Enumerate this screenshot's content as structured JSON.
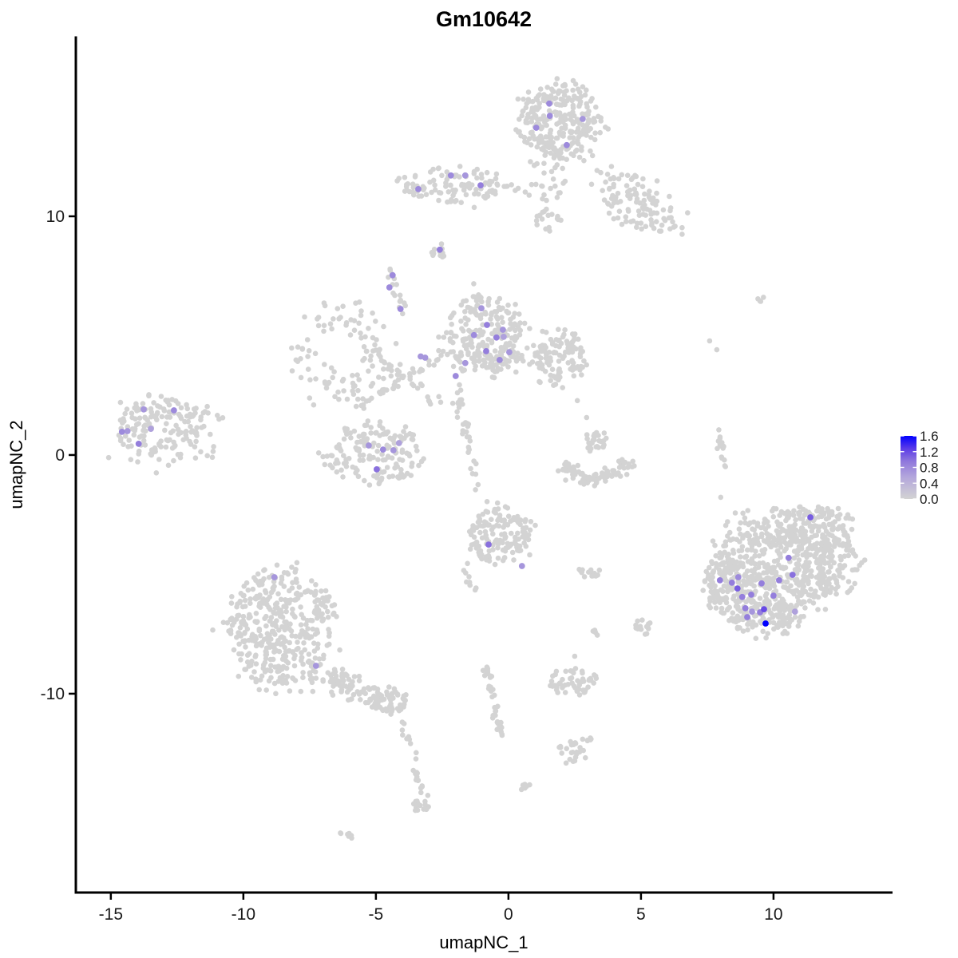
{
  "title": "Gm10642",
  "legend": {
    "labels": [
      "1.6",
      "1.2",
      "0.8",
      "0.4",
      "0.0"
    ],
    "values": [
      1.6,
      1.2,
      0.8,
      0.4,
      0.0
    ],
    "low_color": "#D3D3D3",
    "high_color": "#0000FF",
    "position": "right"
  },
  "chart_data": {
    "type": "scatter",
    "title": "Gm10642",
    "xlabel": "umapNC_1",
    "ylabel": "umapNC_2",
    "xlim": [
      -16.32,
      14.49
    ],
    "ylim": [
      -18.33,
      17.49
    ],
    "x_ticks": [
      -15,
      -10,
      -5,
      0,
      5,
      10
    ],
    "x_tick_labels": [
      "-15",
      "-10",
      "-5",
      "0",
      "5",
      "10"
    ],
    "y_ticks": [
      10,
      0,
      -10
    ],
    "y_tick_labels": [
      "10",
      "0",
      "-10"
    ],
    "grid": false,
    "legend_position": "right",
    "expression_max": 1.6,
    "gradient_stops": [
      [
        0,
        "#D3D3D3"
      ],
      [
        0.35,
        "#B3A6DC"
      ],
      [
        0.6,
        "#8F77DC"
      ],
      [
        0.8,
        "#5B3BE8"
      ],
      [
        1,
        "#0000FF"
      ]
    ],
    "background_clusters": [
      {
        "cx": 1.9,
        "cy": 14.0,
        "rx": 1.5,
        "ry": 1.55,
        "n": 270
      },
      {
        "cx": 1.45,
        "cy": 11.2,
        "rx": 0.85,
        "ry": 1.7,
        "n": 48
      },
      {
        "cx": 4.8,
        "cy": 10.6,
        "rx": 1.9,
        "ry": 0.95,
        "n": 115,
        "rot": -32
      },
      {
        "cx": -1.9,
        "cy": 11.3,
        "rx": 2.0,
        "ry": 0.8,
        "n": 95
      },
      {
        "cx": -3.55,
        "cy": 11.15,
        "rx": 0.4,
        "ry": 0.3,
        "n": 9
      },
      {
        "cx": -2.6,
        "cy": 8.6,
        "rx": 0.3,
        "ry": 0.35,
        "n": 12
      },
      {
        "cx": -4.4,
        "cy": 7.4,
        "rx": 0.22,
        "ry": 0.38,
        "n": 8
      },
      {
        "cx": -0.85,
        "cy": 5.0,
        "rx": 1.5,
        "ry": 1.65,
        "n": 240
      },
      {
        "cx": 1.9,
        "cy": 4.0,
        "rx": 1.05,
        "ry": 1.2,
        "n": 115
      },
      {
        "cx": -6.3,
        "cy": 4.3,
        "rx": 1.7,
        "ry": 2.0,
        "n": 100,
        "hollow": 0.45
      },
      {
        "cx": -13.2,
        "cy": 1.1,
        "rx": 1.7,
        "ry": 1.5,
        "n": 160
      },
      {
        "cx": -11.4,
        "cy": 0.9,
        "rx": 0.8,
        "ry": 1.2,
        "n": 14
      },
      {
        "cx": -5.1,
        "cy": 0.1,
        "rx": 1.75,
        "ry": 1.3,
        "n": 160
      },
      {
        "cx": 3.3,
        "cy": 0.65,
        "rx": 0.42,
        "ry": 0.5,
        "n": 26
      },
      {
        "cx": -0.35,
        "cy": -3.4,
        "rx": 1.15,
        "ry": 1.15,
        "n": 140
      },
      {
        "cx": 10.2,
        "cy": -4.6,
        "rx": 2.2,
        "ry": 2.2,
        "n": 480
      },
      {
        "cx": 11.7,
        "cy": -3.1,
        "rx": 1.35,
        "ry": 0.95,
        "n": 140
      },
      {
        "cx": 12.3,
        "cy": -4.8,
        "rx": 1.0,
        "ry": 1.1,
        "n": 80
      },
      {
        "cx": 8.3,
        "cy": -5.6,
        "rx": 0.9,
        "ry": 1.45,
        "n": 130
      },
      {
        "cx": 9.8,
        "cy": -6.9,
        "rx": 1.3,
        "ry": 0.75,
        "n": 100
      },
      {
        "cx": -8.6,
        "cy": -7.3,
        "rx": 2.0,
        "ry": 2.45,
        "n": 420
      },
      {
        "cx": -4.4,
        "cy": -10.4,
        "rx": 0.55,
        "ry": 0.55,
        "n": 50
      },
      {
        "cx": 2.4,
        "cy": -9.5,
        "rx": 0.95,
        "ry": 0.5,
        "n": 55
      },
      {
        "cx": 2.4,
        "cy": -12.45,
        "rx": 0.45,
        "ry": 0.45,
        "n": 24
      },
      {
        "cx": 0.6,
        "cy": -13.8,
        "rx": 0.2,
        "ry": 0.2,
        "n": 6
      },
      {
        "cx": 2.98,
        "cy": -4.92,
        "rx": 0.6,
        "ry": 0.22,
        "n": 14
      },
      {
        "cx": 5.1,
        "cy": -7.2,
        "rx": 0.3,
        "ry": 0.45,
        "n": 16
      },
      {
        "cx": 3.3,
        "cy": -7.4,
        "rx": 0.18,
        "ry": 0.3,
        "n": 4
      },
      {
        "cx": -3.35,
        "cy": -14.75,
        "rx": 0.35,
        "ry": 0.3,
        "n": 14
      },
      {
        "cx": -6.1,
        "cy": -15.9,
        "rx": 0.33,
        "ry": 0.13,
        "n": 7,
        "rot": -25
      },
      {
        "cx": 9.46,
        "cy": 6.53,
        "rx": 0.22,
        "ry": 0.1,
        "n": 4
      }
    ],
    "background_strands": [
      {
        "from": [
          -0.4,
          11.35
        ],
        "to": [
          0.7,
          11.05
        ],
        "n": 6,
        "w": 0.18
      },
      {
        "from": [
          -4.3,
          6.9
        ],
        "to": [
          -3.4,
          4.9
        ],
        "n": 9,
        "w": 0.18
      },
      {
        "from": [
          -1.25,
          7.3
        ],
        "to": [
          -1.0,
          6.4
        ],
        "n": 5,
        "w": 0.15
      },
      {
        "from": [
          -5.6,
          2.0
        ],
        "to": [
          -2.4,
          4.3
        ],
        "n": 36,
        "w": 0.22
      },
      {
        "from": [
          -5.0,
          4.2
        ],
        "to": [
          -2.6,
          2.1
        ],
        "n": 30,
        "w": 0.22
      },
      {
        "from": [
          -2.0,
          3.0
        ],
        "to": [
          -1.45,
          0.3
        ],
        "n": 26,
        "w": 0.18
      },
      {
        "from": [
          -1.4,
          0.0
        ],
        "to": [
          -1.15,
          -1.6
        ],
        "n": 7,
        "w": 0.15
      },
      {
        "from": [
          2.0,
          -0.5
        ],
        "to": [
          3.2,
          -1.15
        ],
        "n": 45,
        "w": 0.3
      },
      {
        "from": [
          3.2,
          -1.15
        ],
        "to": [
          4.6,
          -0.35
        ],
        "n": 45,
        "w": 0.3
      },
      {
        "from": [
          7.9,
          1.1
        ],
        "to": [
          8.15,
          -0.6
        ],
        "n": 16,
        "w": 0.12
      },
      {
        "from": [
          -6.9,
          -9.2
        ],
        "to": [
          -5.0,
          -10.2
        ],
        "n": 80,
        "w": 0.45
      },
      {
        "from": [
          -4.05,
          -11.05
        ],
        "to": [
          -3.45,
          -12.75
        ],
        "n": 10,
        "w": 0.1
      },
      {
        "from": [
          -3.55,
          -13.2
        ],
        "to": [
          -3.15,
          -14.3
        ],
        "n": 13,
        "w": 0.12
      },
      {
        "from": [
          -0.85,
          -8.9
        ],
        "to": [
          -0.55,
          -10.4
        ],
        "n": 20,
        "w": 0.18
      },
      {
        "from": [
          -0.55,
          -10.4
        ],
        "to": [
          -0.22,
          -11.9
        ],
        "n": 18,
        "w": 0.18
      },
      {
        "from": [
          -1.75,
          -4.6
        ],
        "to": [
          -1.3,
          -5.7
        ],
        "n": 9,
        "w": 0.15
      },
      {
        "from": [
          2.75,
          -12.15
        ],
        "to": [
          3.3,
          -11.65
        ],
        "n": 6,
        "w": 0.12
      }
    ],
    "background_singles": [
      [
        8.01,
        -1.77
      ],
      [
        2.5,
        -8.43
      ],
      [
        7.59,
        4.78
      ],
      [
        7.86,
        4.41
      ],
      [
        2.6,
        2.28
      ],
      [
        2.95,
        1.57
      ]
    ],
    "expressing_cells": [
      [
        1.54,
        14.72,
        0.8
      ],
      [
        1.56,
        14.21,
        0.8
      ],
      [
        1.05,
        13.71,
        0.8
      ],
      [
        2.8,
        14.08,
        0.7
      ],
      [
        2.2,
        12.98,
        0.8
      ],
      [
        -2.17,
        11.71,
        0.8
      ],
      [
        -1.63,
        11.71,
        0.7
      ],
      [
        -1.05,
        11.3,
        0.9
      ],
      [
        -3.4,
        11.14,
        0.8
      ],
      [
        -2.59,
        8.6,
        0.9
      ],
      [
        -4.37,
        7.53,
        0.8
      ],
      [
        -4.49,
        7.02,
        0.8
      ],
      [
        -4.07,
        6.12,
        0.8
      ],
      [
        -1.02,
        6.15,
        0.7
      ],
      [
        -0.81,
        5.45,
        0.9
      ],
      [
        -0.21,
        5.25,
        0.7
      ],
      [
        -1.3,
        5.02,
        0.8
      ],
      [
        -0.45,
        4.92,
        0.9
      ],
      [
        -0.18,
        4.95,
        0.6
      ],
      [
        -0.84,
        4.35,
        0.9
      ],
      [
        0.03,
        4.31,
        0.7
      ],
      [
        -1.63,
        3.85,
        0.7
      ],
      [
        -0.33,
        3.98,
        0.8
      ],
      [
        -1.99,
        3.31,
        0.8
      ],
      [
        -3.31,
        4.13,
        0.7
      ],
      [
        -3.14,
        4.08,
        0.7
      ],
      [
        -13.76,
        1.91,
        0.7
      ],
      [
        -12.62,
        1.87,
        0.8
      ],
      [
        -14.58,
        0.97,
        0.8
      ],
      [
        -14.37,
        1.0,
        0.7
      ],
      [
        -13.49,
        1.1,
        0.6
      ],
      [
        -13.95,
        0.47,
        0.9
      ],
      [
        -5.27,
        0.4,
        0.7
      ],
      [
        -4.73,
        0.23,
        0.8
      ],
      [
        -4.34,
        0.2,
        0.7
      ],
      [
        -4.13,
        0.5,
        0.6
      ],
      [
        -4.97,
        -0.6,
        1.0
      ],
      [
        -0.75,
        -3.75,
        1.0
      ],
      [
        0.51,
        -4.65,
        0.7
      ],
      [
        -8.83,
        -5.12,
        0.7
      ],
      [
        -7.26,
        -8.83,
        0.7
      ],
      [
        11.39,
        -2.61,
        1.1
      ],
      [
        10.57,
        -4.31,
        0.9
      ],
      [
        10.72,
        -5.02,
        1.0
      ],
      [
        10.21,
        -5.25,
        0.9
      ],
      [
        7.98,
        -5.25,
        0.9
      ],
      [
        8.43,
        -5.35,
        0.9
      ],
      [
        8.67,
        -5.12,
        0.8
      ],
      [
        8.64,
        -5.59,
        1.1
      ],
      [
        9.55,
        -5.38,
        0.9
      ],
      [
        8.82,
        -5.95,
        0.9
      ],
      [
        9.16,
        -5.85,
        0.9
      ],
      [
        10.0,
        -5.89,
        0.9
      ],
      [
        8.94,
        -6.42,
        0.9
      ],
      [
        9.19,
        -6.56,
        0.7
      ],
      [
        9.49,
        -6.59,
        0.9
      ],
      [
        9.64,
        -6.46,
        1.2
      ],
      [
        9.01,
        -6.79,
        0.9
      ],
      [
        10.81,
        -6.56,
        0.6
      ],
      [
        9.7,
        -7.06,
        1.6
      ]
    ]
  }
}
